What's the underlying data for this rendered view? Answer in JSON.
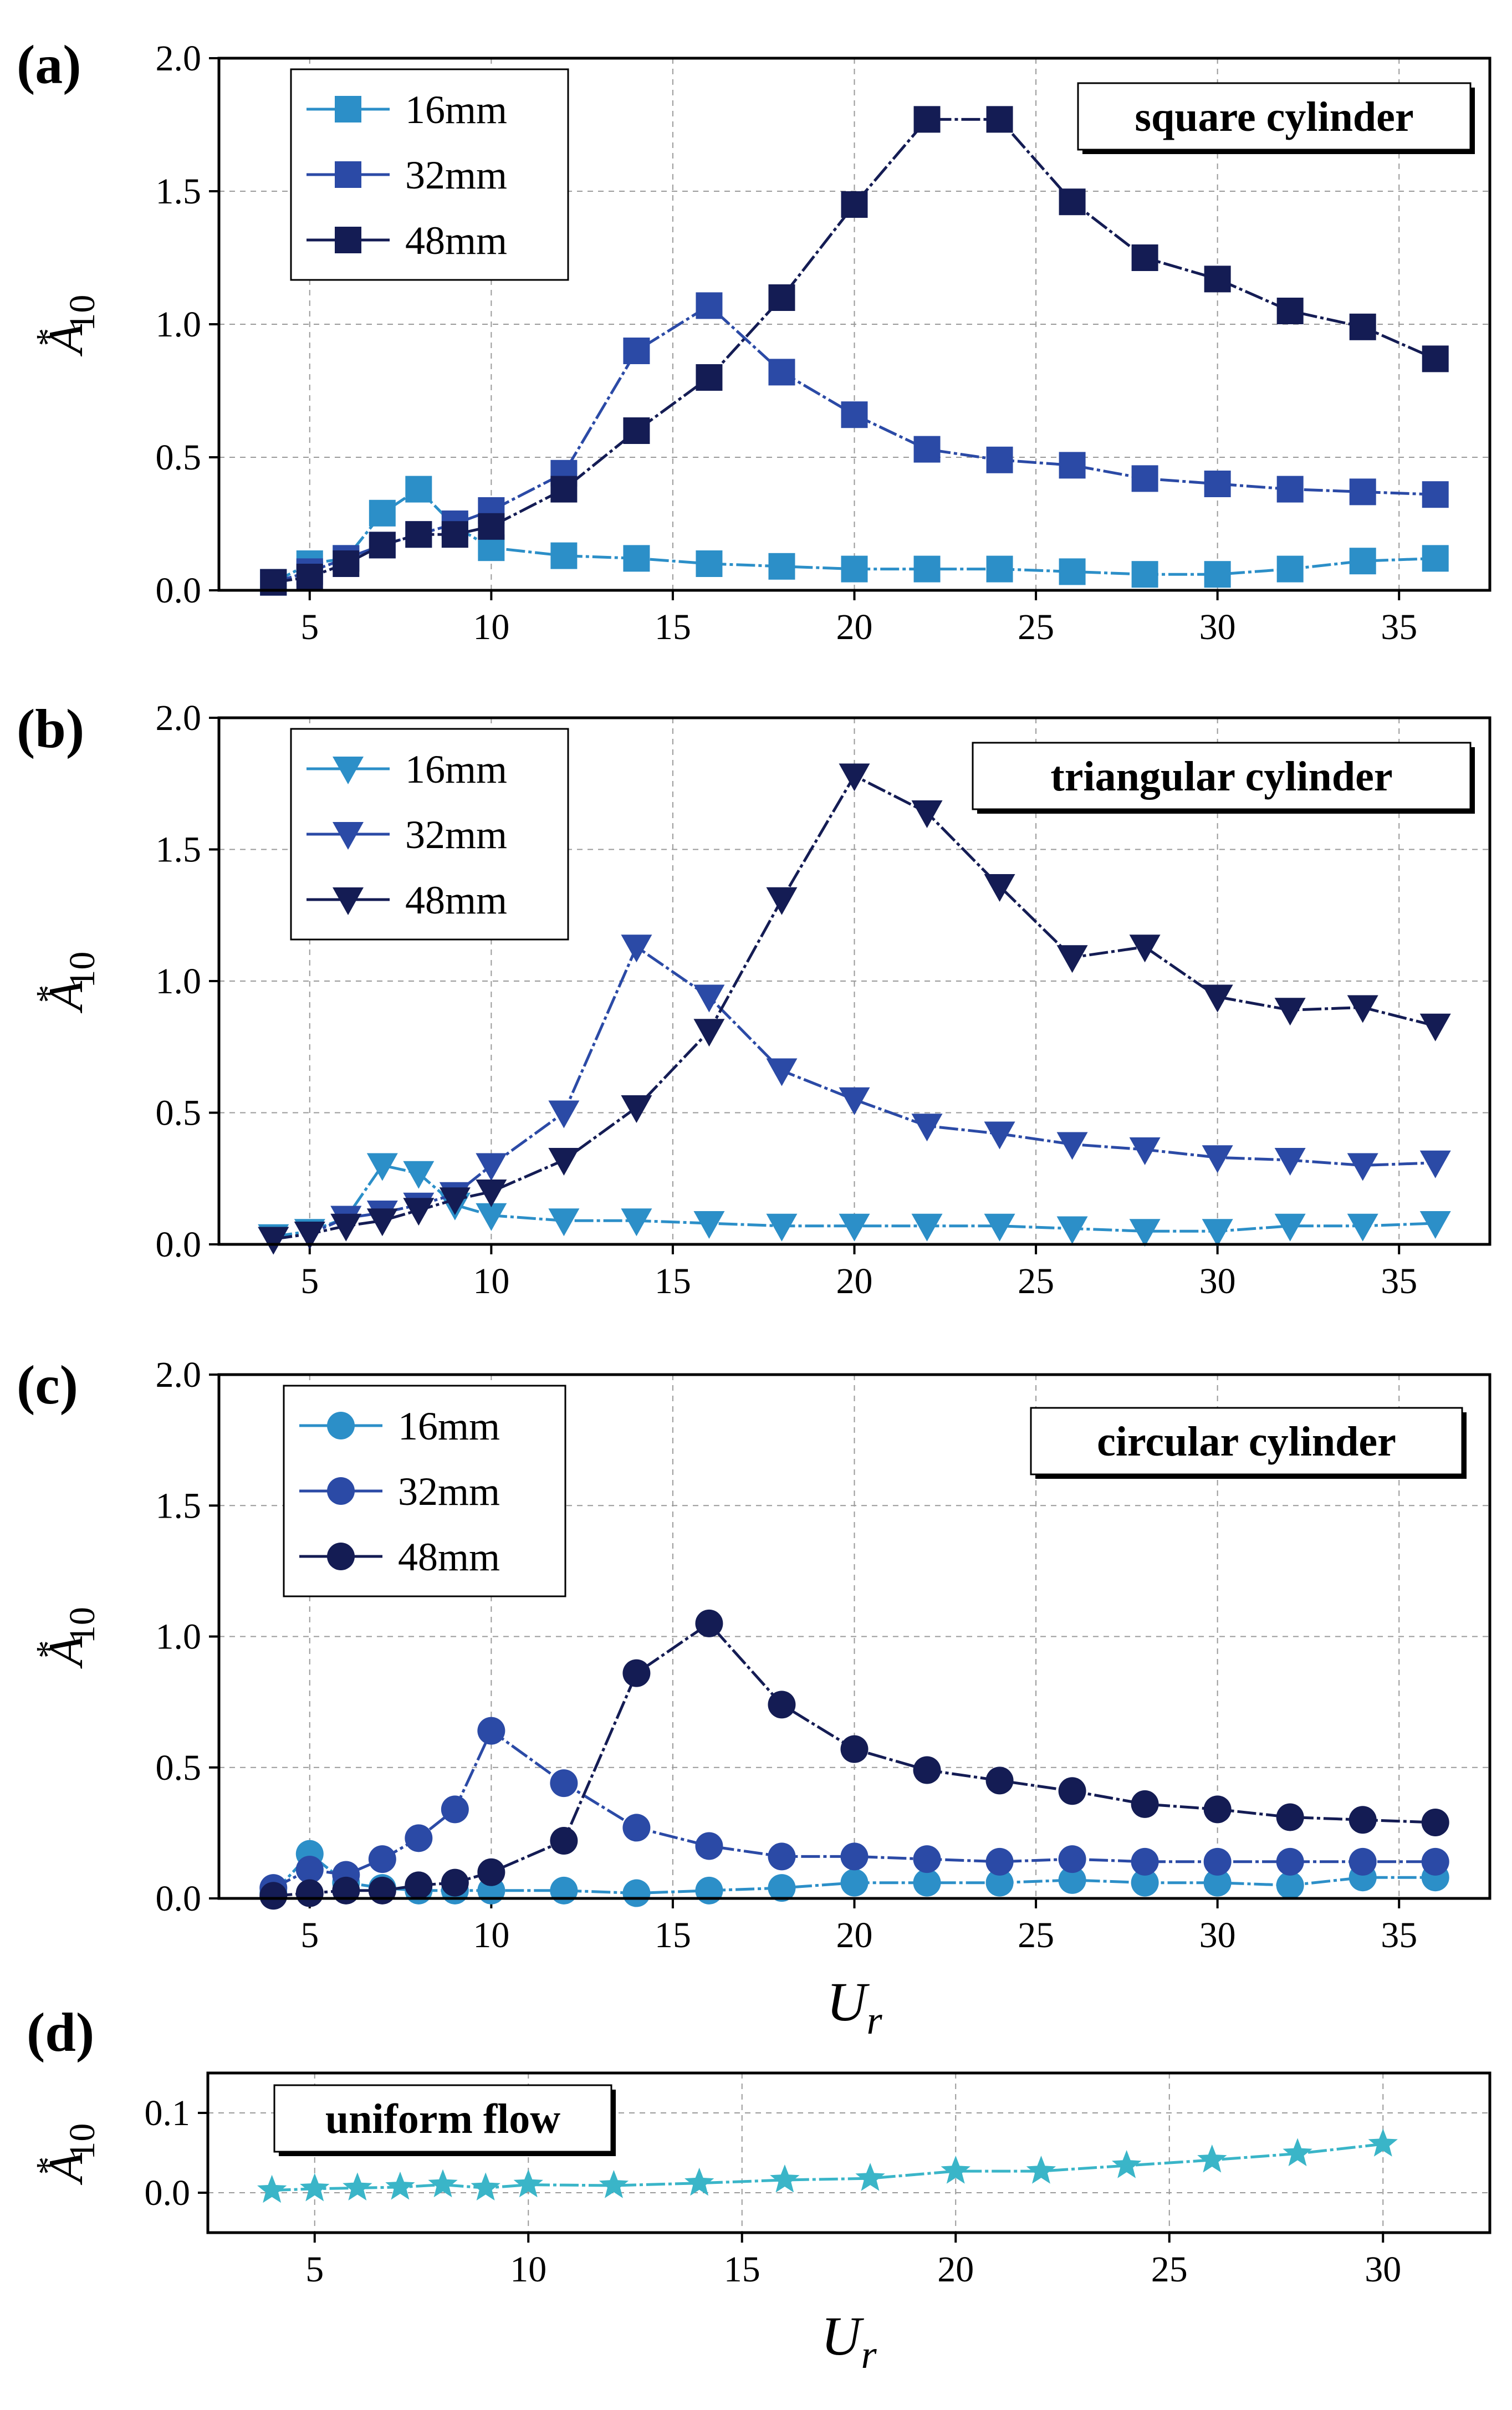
{
  "figure": {
    "x_label": "U",
    "x_label_sub": "r",
    "y_label": "A",
    "y_label_sup": "*",
    "y_label_sub": "10"
  },
  "chart_data": [
    {
      "type": "line",
      "panel": "(a)",
      "title": "square cylinder",
      "marker": "square",
      "xlim": [
        2.5,
        37.5
      ],
      "ylim": [
        0,
        2.0
      ],
      "xticks": [
        5,
        10,
        15,
        20,
        25,
        30,
        35
      ],
      "yticks": [
        "0.0",
        "0.5",
        "1.0",
        "1.5",
        "2.0"
      ],
      "grid": true,
      "legend_position": "top-left",
      "xlabel": "",
      "ylabel": "A*10",
      "series": [
        {
          "name": "16mm",
          "color": "#2c8fc8",
          "x": [
            4,
            5,
            6,
            7,
            8,
            9,
            10,
            12,
            14,
            16,
            18,
            20,
            22,
            24,
            26,
            28,
            30,
            32,
            34,
            36
          ],
          "y": [
            0.03,
            0.1,
            0.12,
            0.29,
            0.38,
            0.24,
            0.16,
            0.13,
            0.12,
            0.1,
            0.09,
            0.08,
            0.08,
            0.08,
            0.07,
            0.06,
            0.06,
            0.08,
            0.11,
            0.12
          ]
        },
        {
          "name": "32mm",
          "color": "#2b4aa6",
          "x": [
            4,
            5,
            6,
            7,
            8,
            9,
            10,
            12,
            14,
            16,
            18,
            20,
            22,
            24,
            26,
            28,
            30,
            32,
            34,
            36
          ],
          "y": [
            0.03,
            0.07,
            0.12,
            0.17,
            0.21,
            0.25,
            0.3,
            0.44,
            0.9,
            1.07,
            0.82,
            0.66,
            0.53,
            0.49,
            0.47,
            0.42,
            0.4,
            0.38,
            0.37,
            0.36
          ]
        },
        {
          "name": "48mm",
          "color": "#141c54",
          "x": [
            4,
            5,
            6,
            7,
            8,
            9,
            10,
            12,
            14,
            16,
            18,
            20,
            22,
            24,
            26,
            28,
            30,
            32,
            34,
            36
          ],
          "y": [
            0.03,
            0.05,
            0.1,
            0.17,
            0.21,
            0.21,
            0.24,
            0.38,
            0.6,
            0.8,
            1.1,
            1.45,
            1.77,
            1.77,
            1.46,
            1.25,
            1.17,
            1.05,
            0.99,
            0.87
          ]
        }
      ]
    },
    {
      "type": "line",
      "panel": "(b)",
      "title": "triangular cylinder",
      "marker": "triangle-down",
      "xlim": [
        2.5,
        37.5
      ],
      "ylim": [
        0,
        2.0
      ],
      "xticks": [
        5,
        10,
        15,
        20,
        25,
        30,
        35
      ],
      "yticks": [
        "0.0",
        "0.5",
        "1.0",
        "1.5",
        "2.0"
      ],
      "grid": true,
      "legend_position": "top-left",
      "xlabel": "",
      "ylabel": "A*10",
      "series": [
        {
          "name": "16mm",
          "color": "#2c8fc8",
          "x": [
            4,
            5,
            6,
            7,
            8,
            9,
            10,
            12,
            14,
            16,
            18,
            20,
            22,
            24,
            26,
            28,
            30,
            32,
            34,
            36
          ],
          "y": [
            0.03,
            0.05,
            0.1,
            0.3,
            0.27,
            0.15,
            0.11,
            0.09,
            0.09,
            0.08,
            0.07,
            0.07,
            0.07,
            0.07,
            0.06,
            0.05,
            0.05,
            0.07,
            0.07,
            0.08
          ]
        },
        {
          "name": "32mm",
          "color": "#2b4aa6",
          "x": [
            4,
            5,
            6,
            7,
            8,
            9,
            10,
            12,
            14,
            16,
            18,
            20,
            22,
            24,
            26,
            28,
            30,
            32,
            34,
            36
          ],
          "y": [
            0.02,
            0.04,
            0.1,
            0.12,
            0.15,
            0.19,
            0.3,
            0.5,
            1.13,
            0.94,
            0.66,
            0.55,
            0.45,
            0.42,
            0.38,
            0.36,
            0.33,
            0.32,
            0.3,
            0.31
          ]
        },
        {
          "name": "48mm",
          "color": "#141c54",
          "x": [
            4,
            5,
            6,
            7,
            8,
            9,
            10,
            12,
            14,
            16,
            18,
            20,
            22,
            24,
            26,
            28,
            30,
            32,
            34,
            36
          ],
          "y": [
            0.02,
            0.04,
            0.07,
            0.09,
            0.13,
            0.17,
            0.2,
            0.32,
            0.52,
            0.81,
            1.31,
            1.78,
            1.64,
            1.36,
            1.09,
            1.13,
            0.94,
            0.89,
            0.9,
            0.83
          ]
        }
      ]
    },
    {
      "type": "line",
      "panel": "(c)",
      "title": "circular cylinder",
      "marker": "circle",
      "xlim": [
        2.5,
        37.5
      ],
      "ylim": [
        0,
        2.0
      ],
      "xticks": [
        5,
        10,
        15,
        20,
        25,
        30,
        35
      ],
      "yticks": [
        "0.0",
        "0.5",
        "1.0",
        "1.5",
        "2.0"
      ],
      "grid": true,
      "legend_position": "top-left",
      "xlabel": "Ur",
      "ylabel": "A*10",
      "series": [
        {
          "name": "16mm",
          "color": "#2c8fc8",
          "x": [
            4,
            5,
            6,
            7,
            8,
            9,
            10,
            12,
            14,
            16,
            18,
            20,
            22,
            24,
            26,
            28,
            30,
            32,
            34,
            36
          ],
          "y": [
            0.02,
            0.17,
            0.06,
            0.04,
            0.03,
            0.03,
            0.03,
            0.03,
            0.02,
            0.03,
            0.04,
            0.06,
            0.06,
            0.06,
            0.07,
            0.06,
            0.06,
            0.05,
            0.08,
            0.08
          ]
        },
        {
          "name": "32mm",
          "color": "#2b4aa6",
          "x": [
            4,
            5,
            6,
            7,
            8,
            9,
            10,
            12,
            14,
            16,
            18,
            20,
            22,
            24,
            26,
            28,
            30,
            32,
            34,
            36
          ],
          "y": [
            0.04,
            0.11,
            0.09,
            0.15,
            0.23,
            0.34,
            0.64,
            0.44,
            0.27,
            0.2,
            0.16,
            0.16,
            0.15,
            0.14,
            0.15,
            0.14,
            0.14,
            0.14,
            0.14,
            0.14
          ]
        },
        {
          "name": "48mm",
          "color": "#141c54",
          "x": [
            4,
            5,
            6,
            7,
            8,
            9,
            10,
            12,
            14,
            16,
            18,
            20,
            22,
            24,
            26,
            28,
            30,
            32,
            34,
            36
          ],
          "y": [
            0.01,
            0.02,
            0.03,
            0.03,
            0.05,
            0.06,
            0.1,
            0.22,
            0.86,
            1.05,
            0.74,
            0.57,
            0.49,
            0.45,
            0.41,
            0.36,
            0.34,
            0.31,
            0.3,
            0.29
          ]
        }
      ]
    },
    {
      "type": "line",
      "panel": "(d)",
      "title": "uniform flow",
      "marker": "star",
      "xlim": [
        2.5,
        32.5
      ],
      "ylim": [
        -0.05,
        0.15
      ],
      "xticks": [
        5,
        10,
        15,
        20,
        25,
        30
      ],
      "yticks": [
        "0.0",
        "0.1"
      ],
      "grid": true,
      "legend_position": "none",
      "xlabel": "Ur",
      "ylabel": "A*10",
      "series": [
        {
          "name": "uniform flow",
          "color": "#3ab5c8",
          "x": [
            4,
            5,
            6,
            7,
            8,
            9,
            10,
            12,
            14,
            16,
            18,
            20,
            22,
            24,
            26,
            28,
            30
          ],
          "y": [
            0.003,
            0.005,
            0.006,
            0.007,
            0.01,
            0.006,
            0.01,
            0.009,
            0.012,
            0.016,
            0.018,
            0.027,
            0.027,
            0.034,
            0.041,
            0.049,
            0.061
          ]
        }
      ]
    }
  ]
}
